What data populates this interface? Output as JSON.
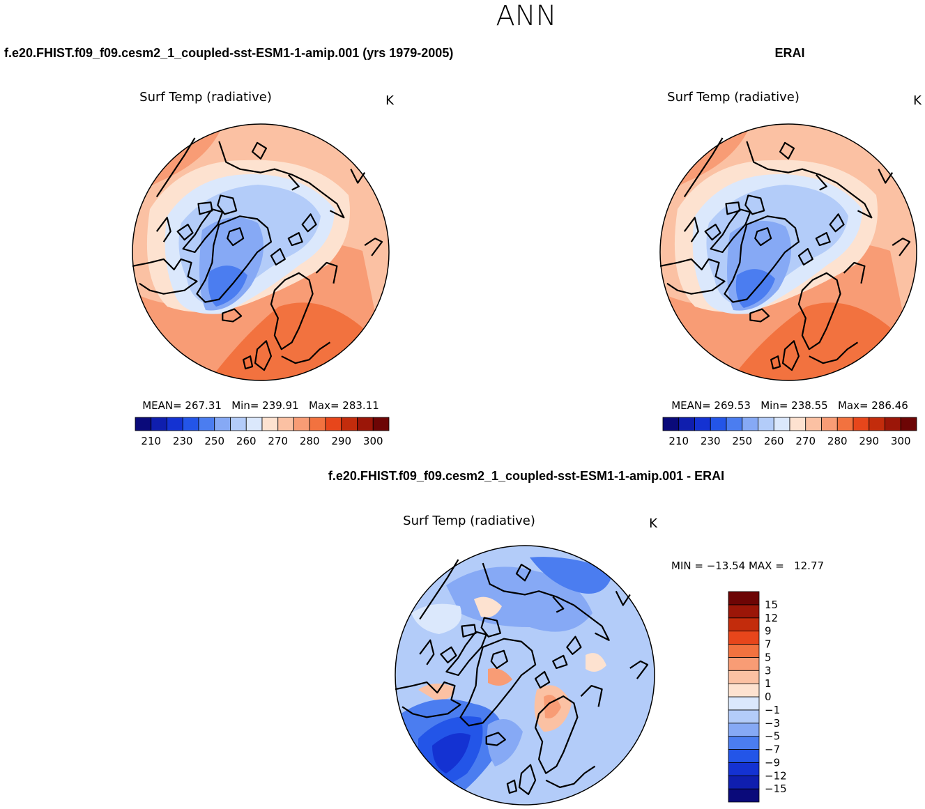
{
  "page_title": "ANN",
  "panels": [
    {
      "header": "f.e20.FHIST.f09_f09.cesm2_1_coupled-sst-ESM1-1-amip.001 (yrs 1979-2005)",
      "plot_title": "Surf Temp (radiative)",
      "units": "K",
      "stats": "MEAN= 267.31   Min= 239.91   Max= 283.11"
    },
    {
      "header": "ERAI",
      "plot_title": "Surf Temp (radiative)",
      "units": "K",
      "stats": "MEAN= 269.53   Min= 238.55   Max= 286.46"
    }
  ],
  "diff_panel": {
    "header": "f.e20.FHIST.f09_f09.cesm2_1_coupled-sst-ESM1-1-amip.001 - ERAI",
    "plot_title": "Surf Temp (radiative)",
    "units": "K",
    "stats": "MIN = −13.54 MAX =   12.77"
  },
  "chart_data": [
    {
      "type": "heatmap",
      "projection": "north-polar-stereographic",
      "title": "Surf Temp (radiative)",
      "units": "K",
      "mean": 267.31,
      "min": 239.91,
      "max": 283.11,
      "colorbar_orientation": "horizontal",
      "colorbar_levels": [
        210,
        220,
        230,
        240,
        250,
        255,
        260,
        265,
        270,
        275,
        280,
        285,
        290,
        295,
        300
      ],
      "colorbar_tick_labels": [
        "210",
        "230",
        "250",
        "260",
        "270",
        "280",
        "290",
        "300"
      ],
      "colorbar_colors": [
        "#0a0a7a",
        "#0f1eae",
        "#1432d2",
        "#2355e8",
        "#4b7df0",
        "#86a9f5",
        "#b3ccf9",
        "#dbe8fc",
        "#fde2d0",
        "#fbc1a3",
        "#f89c75",
        "#f2723f",
        "#e7461b",
        "#c32c0c",
        "#9b1608",
        "#6d0505"
      ]
    },
    {
      "type": "heatmap",
      "projection": "north-polar-stereographic",
      "title": "Surf Temp (radiative)",
      "units": "K",
      "mean": 269.53,
      "min": 238.55,
      "max": 286.46,
      "colorbar_orientation": "horizontal",
      "colorbar_levels": [
        210,
        220,
        230,
        240,
        250,
        255,
        260,
        265,
        270,
        275,
        280,
        285,
        290,
        295,
        300
      ],
      "colorbar_tick_labels": [
        "210",
        "230",
        "250",
        "260",
        "270",
        "280",
        "290",
        "300"
      ],
      "colorbar_colors": [
        "#0a0a7a",
        "#0f1eae",
        "#1432d2",
        "#2355e8",
        "#4b7df0",
        "#86a9f5",
        "#b3ccf9",
        "#dbe8fc",
        "#fde2d0",
        "#fbc1a3",
        "#f89c75",
        "#f2723f",
        "#e7461b",
        "#c32c0c",
        "#9b1608",
        "#6d0505"
      ]
    },
    {
      "type": "heatmap",
      "projection": "north-polar-stereographic",
      "title": "Surf Temp (radiative)",
      "units": "K",
      "min": -13.54,
      "max": 12.77,
      "colorbar_orientation": "vertical",
      "colorbar_levels": [
        -15,
        -12,
        -9,
        -7,
        -5,
        -3,
        -1,
        0,
        1,
        3,
        5,
        7,
        9,
        12,
        15
      ],
      "colorbar_tick_labels": [
        "−15",
        "−12",
        "−9",
        "−7",
        "−5",
        "−3",
        "−1",
        "0",
        "1",
        "3",
        "5",
        "7",
        "9",
        "12",
        "15"
      ],
      "colorbar_colors": [
        "#0a0a7a",
        "#0f1eae",
        "#1432d2",
        "#2355e8",
        "#4b7df0",
        "#86a9f5",
        "#b3ccf9",
        "#dbe8fc",
        "#fde2d0",
        "#fbc1a3",
        "#f89c75",
        "#f2723f",
        "#e7461b",
        "#c32c0c",
        "#9b1608",
        "#6d0505"
      ]
    }
  ]
}
